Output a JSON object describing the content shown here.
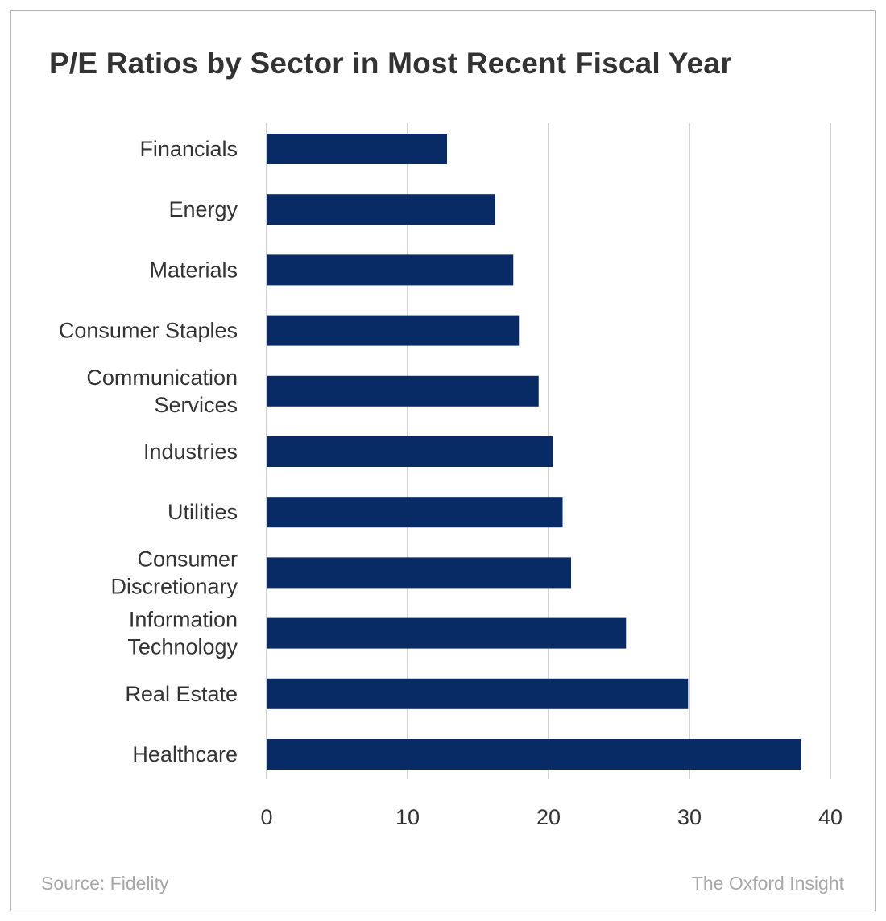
{
  "chart_data": {
    "type": "bar",
    "orientation": "horizontal",
    "title": "P/E Ratios by Sector in Most Recent Fiscal Year",
    "categories": [
      "Financials",
      "Energy",
      "Materials",
      "Consumer Staples",
      "Communication Services",
      "Industries",
      "Utilities",
      "Consumer Discretionary",
      "Information Technology",
      "Real Estate",
      "Healthcare"
    ],
    "category_lines": [
      [
        "Financials"
      ],
      [
        "Energy"
      ],
      [
        "Materials"
      ],
      [
        "Consumer Staples"
      ],
      [
        "Communication",
        "Services"
      ],
      [
        "Industries"
      ],
      [
        "Utilities"
      ],
      [
        "Consumer",
        "Discretionary"
      ],
      [
        "Information",
        "Technology"
      ],
      [
        "Real Estate"
      ],
      [
        "Healthcare"
      ]
    ],
    "values": [
      12.8,
      16.2,
      17.5,
      17.9,
      19.3,
      20.3,
      21.0,
      21.6,
      25.5,
      29.9,
      37.9
    ],
    "xlim": [
      0,
      40
    ],
    "xticks": [
      "0",
      "10",
      "20",
      "30",
      "40"
    ],
    "xlabel": "",
    "ylabel": "",
    "grid": true,
    "legend": "none",
    "bar_color": "#082b66",
    "grid_color": "#c4c4c4"
  },
  "footer": {
    "source": "Source: Fidelity",
    "brand": "The Oxford Insight"
  }
}
